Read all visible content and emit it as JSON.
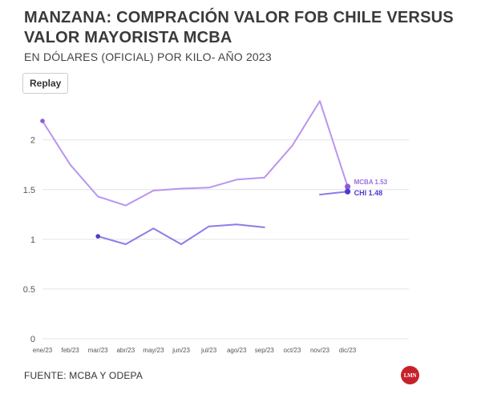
{
  "header": {
    "title": "MANZANA: COMPRACIÓN VALOR FOB CHILE VERSUS VALOR MAYORISTA MCBA",
    "subtitle": "EN DÓLARES (OFICIAL) POR KILO- AÑO 2023"
  },
  "controls": {
    "replay_label": "Replay"
  },
  "footer": {
    "source": "FUENTE: MCBA Y ODEPA",
    "logo_text": "LMN"
  },
  "colors": {
    "mcba": "#b994f0",
    "chi": "#8a7ee8",
    "mcba_dot": "#8f5ad9",
    "chi_dot": "#4a3bd4",
    "label_mcba": "#9b6fe0",
    "label_chi": "#4a3bd4",
    "grid": "#e4e4e4",
    "axis_text": "#555555"
  },
  "chart_data": {
    "type": "line",
    "categories": [
      "ene/23",
      "feb/23",
      "mar/23",
      "abr/23",
      "may/23",
      "jun/23",
      "jul/23",
      "ago/23",
      "sep/23",
      "oct/23",
      "nov/23",
      "dic/23"
    ],
    "ylim": [
      0,
      2.4
    ],
    "yticks": [
      0,
      0.5,
      1,
      1.5,
      2
    ],
    "ytick_labels": [
      "0",
      "0.5",
      "1",
      "1.5",
      "2"
    ],
    "grid": true,
    "series": [
      {
        "name": "MCBA",
        "end_label": "MCBA 1.53",
        "values": [
          2.19,
          1.75,
          1.43,
          1.34,
          1.49,
          1.51,
          1.52,
          1.6,
          1.62,
          1.94,
          2.39,
          1.53
        ]
      },
      {
        "name": "CHI",
        "end_label": "CHI 1.48",
        "values": [
          null,
          null,
          1.03,
          0.95,
          1.11,
          0.95,
          1.13,
          1.15,
          1.12,
          null,
          1.45,
          1.48
        ]
      }
    ]
  }
}
